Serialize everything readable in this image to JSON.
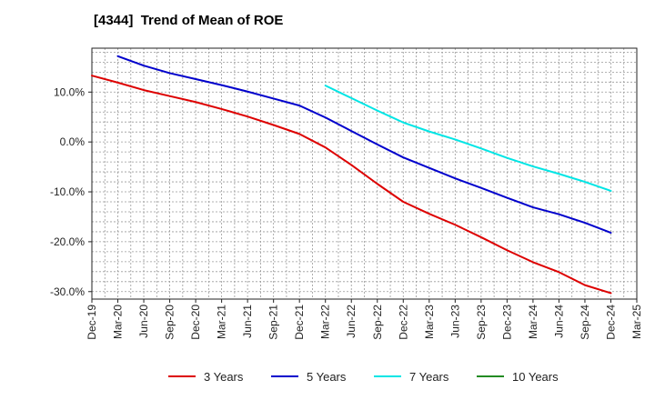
{
  "chart_data": {
    "type": "line",
    "title": "[4344]  Trend of Mean of ROE",
    "xlabel": "",
    "ylabel": "",
    "x": [
      "Dec-19",
      "Mar-20",
      "Jun-20",
      "Sep-20",
      "Dec-20",
      "Mar-21",
      "Jun-21",
      "Sep-21",
      "Dec-21",
      "Mar-22",
      "Jun-22",
      "Sep-22",
      "Dec-22",
      "Mar-23",
      "Jun-23",
      "Sep-23",
      "Dec-23",
      "Mar-24",
      "Jun-24",
      "Sep-24",
      "Dec-24",
      "Mar-25"
    ],
    "ylim": [
      -31.5,
      18.8
    ],
    "yticks": [
      10,
      0,
      -10,
      -20,
      -30
    ],
    "ytick_labels": [
      "10.0%",
      "0.0%",
      "-10.0%",
      "-20.0%",
      "-30.0%"
    ],
    "grid": true,
    "series": [
      {
        "name": "3 Years",
        "color": "#dd0000",
        "values": [
          13.3,
          11.9,
          10.4,
          9.2,
          8.0,
          6.6,
          5.1,
          3.4,
          1.6,
          -1.1,
          -4.6,
          -8.4,
          -12.0,
          -14.4,
          -16.6,
          -19.1,
          -21.7,
          -24.1,
          -26.1,
          -28.7,
          -30.3,
          null
        ]
      },
      {
        "name": "5 Years",
        "color": "#0000cc",
        "values": [
          null,
          17.2,
          15.3,
          13.8,
          12.6,
          11.4,
          10.1,
          8.7,
          7.3,
          4.9,
          2.2,
          -0.5,
          -3.1,
          -5.2,
          -7.3,
          -9.2,
          -11.2,
          -13.1,
          -14.5,
          -16.2,
          -18.2,
          null
        ]
      },
      {
        "name": "7 Years",
        "color": "#00e5e5",
        "values": [
          null,
          null,
          null,
          null,
          null,
          null,
          null,
          null,
          null,
          11.3,
          8.8,
          6.3,
          3.9,
          2.1,
          0.5,
          -1.3,
          -3.2,
          -4.9,
          -6.4,
          -8.0,
          -9.8,
          null
        ]
      },
      {
        "name": "10 Years",
        "color": "#228b22",
        "values": [
          null,
          null,
          null,
          null,
          null,
          null,
          null,
          null,
          null,
          null,
          null,
          null,
          null,
          null,
          null,
          null,
          null,
          null,
          null,
          null,
          null,
          null
        ]
      }
    ],
    "legend": [
      "3 Years",
      "5 Years",
      "7 Years",
      "10 Years"
    ]
  }
}
